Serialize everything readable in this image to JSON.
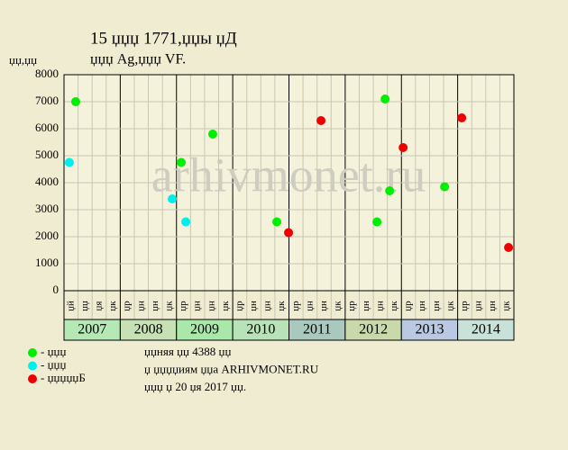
{
  "chart_data": {
    "type": "scatter",
    "title": "15 џџџ 1771,џџы џД",
    "subtitle": "џџџ Ag,џџџ VF.",
    "y_label": "џџ,џџ",
    "watermark": "arhivmonet.ru",
    "categories": [
      "џй",
      "џџ",
      "џя",
      "џк",
      "џр",
      "џн",
      "џн",
      "џк",
      "џр",
      "џн",
      "џн",
      "џк",
      "џр",
      "џн",
      "џн",
      "џк",
      "џр",
      "џн",
      "џн",
      "џк",
      "џр",
      "џн",
      "џн",
      "џк",
      "џр",
      "џн",
      "џн",
      "џк",
      "џр",
      "џн",
      "џн",
      "џк"
    ],
    "years": [
      {
        "label": "2007",
        "color": "#b5e8b5"
      },
      {
        "label": "2008",
        "color": "#c6e2b4"
      },
      {
        "label": "2009",
        "color": "#a9e8a9"
      },
      {
        "label": "2010",
        "color": "#b8e2b8"
      },
      {
        "label": "2011",
        "color": "#a9c9bf"
      },
      {
        "label": "2012",
        "color": "#c9d9a9"
      },
      {
        "label": "2013",
        "color": "#b9c9e2"
      },
      {
        "label": "2014",
        "color": "#c9e2d9"
      }
    ],
    "xlim": [
      0,
      32
    ],
    "ylim": [
      0,
      8000
    ],
    "yticks": [
      0,
      1000,
      2000,
      3000,
      4000,
      5000,
      6000,
      7000,
      8000
    ],
    "grid": true,
    "series": [
      {
        "name": "- џџџ",
        "color": "#00ee00",
        "x": [
          0.83,
          8.34,
          10.58,
          15.14,
          22.26,
          22.84,
          23.16,
          27.07
        ],
        "values": [
          7000,
          4750,
          5800,
          2550,
          2550,
          7100,
          3700,
          3850
        ]
      },
      {
        "name": "- џџџ",
        "color": "#00eeee",
        "x": [
          0.38,
          7.7,
          8.66
        ],
        "values": [
          4750,
          3400,
          2550
        ]
      },
      {
        "name": "- џџџџџБ",
        "color": "#ee0000",
        "x": [
          15.97,
          18.28,
          24.12,
          28.29,
          31.62
        ],
        "values": [
          2150,
          6300,
          5300,
          6400,
          1600
        ]
      }
    ],
    "notes": [
      "џџняя џџ 4388 џџ",
      "џ џџџџиям џџа ARHIVMONET.RU",
      "џџџ џ 20 џя 2017 џџ."
    ]
  }
}
